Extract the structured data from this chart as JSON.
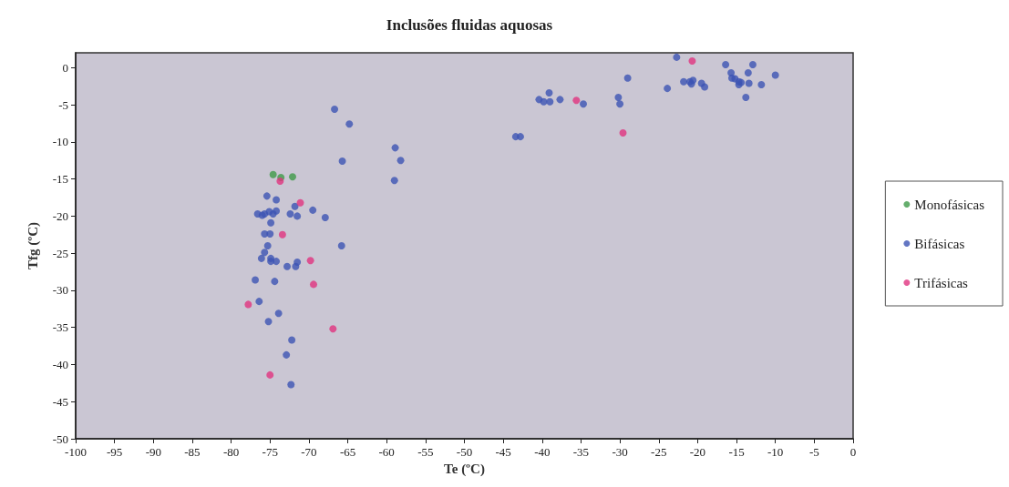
{
  "chart_data": {
    "type": "scatter",
    "title": "Inclusões fluidas aquosas",
    "xlabel": "Te (ºC)",
    "ylabel": "Tfg (ºC)",
    "xlim": [
      -100,
      0
    ],
    "xticks": [
      -100,
      -95,
      -90,
      -85,
      -80,
      -75,
      -70,
      -65,
      -60,
      -55,
      -50,
      -45,
      -40,
      -35,
      -30,
      -25,
      -20,
      -15,
      -10,
      -5,
      0
    ],
    "ylim": [
      -50,
      2
    ],
    "yticks": [
      -50,
      -45,
      -40,
      -35,
      -30,
      -25,
      -20,
      -15,
      -10,
      -5,
      0
    ],
    "grid": false,
    "legend": "right",
    "marker": "circle",
    "series": [
      {
        "name": "Monofásicas",
        "color": "#3e9a48",
        "x": [
          -74.6,
          -73.6,
          -72.1
        ],
        "values": [
          -14.4,
          -14.8,
          -14.7
        ]
      },
      {
        "name": "Bifásicas",
        "color": "#3c54b4",
        "x": [
          -65.7,
          -75.4,
          -74.2,
          -71.8,
          -69.5,
          -76.6,
          -76.0,
          -75.7,
          -75.1,
          -74.6,
          -74.2,
          -72.4,
          -71.5,
          -67.9,
          -74.9,
          -75.7,
          -75.0,
          -75.3,
          -65.8,
          -75.7,
          -76.1,
          -74.9,
          -74.9,
          -74.2,
          -71.5,
          -71.7,
          -72.8,
          -76.9,
          -74.4,
          -76.4,
          -73.9,
          -75.2,
          -72.2,
          -72.9,
          -72.3,
          -66.7,
          -64.8,
          -58.9,
          -58.2,
          -59.0,
          -43.4,
          -42.8,
          -40.4,
          -39.8,
          -39.1,
          -39.0,
          -37.7,
          -34.7,
          -30.2,
          -30.0,
          -29.0,
          -23.9,
          -22.7,
          -21.8,
          -21.0,
          -20.6,
          -20.8,
          -19.5,
          -19.1,
          -16.4,
          -15.7,
          -15.6,
          -15.2,
          -14.7,
          -14.4,
          -14.7,
          -13.5,
          -12.9,
          -13.4,
          -13.8,
          -11.8,
          -10.0
        ],
        "values": [
          -12.6,
          -17.3,
          -17.8,
          -18.7,
          -19.2,
          -19.7,
          -19.9,
          -19.7,
          -19.4,
          -19.7,
          -19.3,
          -19.7,
          -20.0,
          -20.2,
          -20.9,
          -22.4,
          -22.4,
          -24.0,
          -24.0,
          -24.9,
          -25.7,
          -25.7,
          -26.1,
          -26.1,
          -26.2,
          -26.8,
          -26.8,
          -28.6,
          -28.8,
          -31.5,
          -33.1,
          -34.2,
          -36.7,
          -38.7,
          -42.7,
          -5.6,
          -7.6,
          -10.8,
          -12.5,
          -15.2,
          -9.3,
          -9.3,
          -4.3,
          -4.6,
          -3.4,
          -4.6,
          -4.3,
          -4.9,
          -4.0,
          -4.9,
          -1.4,
          -2.8,
          1.4,
          -1.9,
          -1.9,
          -1.7,
          -2.2,
          -2.1,
          -2.6,
          0.4,
          -0.7,
          -1.4,
          -1.5,
          -1.9,
          -2.0,
          -2.3,
          -0.7,
          0.4,
          -2.1,
          -4.0,
          -2.3,
          -1.0
        ]
      },
      {
        "name": "Trifásicas",
        "color": "#e0337f",
        "x": [
          -73.7,
          -71.1,
          -73.4,
          -69.8,
          -69.4,
          -77.8,
          -66.9,
          -75.0,
          -35.6,
          -29.6,
          -20.7
        ],
        "values": [
          -15.3,
          -18.2,
          -22.5,
          -26.0,
          -29.2,
          -31.9,
          -35.2,
          -41.4,
          -4.4,
          -8.8,
          0.9
        ]
      }
    ]
  }
}
